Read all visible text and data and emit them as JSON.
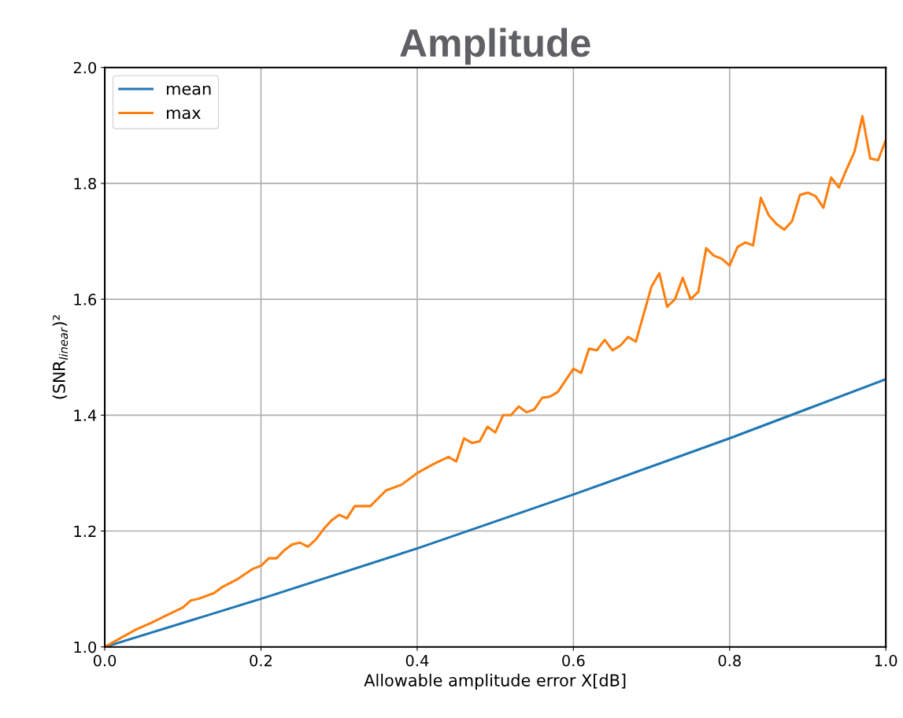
{
  "chart_data": {
    "type": "line",
    "title": "Amplitude",
    "xlabel": "Allowable amplitude error X[dB]",
    "ylabel": "(SNR$_{linear}$)²",
    "xlim": [
      0,
      1.0
    ],
    "ylim": [
      1.0,
      2.0
    ],
    "xticks": [
      {
        "value": 0,
        "label": "0.0"
      },
      0.2,
      0.4,
      0.6,
      0.8,
      {
        "value": 1,
        "label": "1.0"
      }
    ],
    "yticks": [
      {
        "value": 1,
        "label": "1.0"
      },
      1.2,
      1.4,
      1.6,
      1.8,
      {
        "value": 2,
        "label": "2.0"
      }
    ],
    "grid": true,
    "legend": "top left",
    "marker": "none",
    "line_style": "solid",
    "series": [
      {
        "name": "mean",
        "color": "#1f77b4",
        "x": [
          0,
          0.2,
          0.4,
          0.6,
          0.8,
          1.0
        ],
        "values": [
          1.0,
          1.083,
          1.17,
          1.263,
          1.36,
          1.462
        ]
      },
      {
        "name": "max",
        "color": "#ff7f0e",
        "x": [
          0,
          0.02,
          0.04,
          0.06,
          0.08,
          0.1,
          0.11,
          0.12,
          0.14,
          0.15,
          0.17,
          0.19,
          0.2,
          0.21,
          0.22,
          0.23,
          0.24,
          0.25,
          0.26,
          0.27,
          0.28,
          0.29,
          0.3,
          0.31,
          0.32,
          0.34,
          0.36,
          0.38,
          0.4,
          0.42,
          0.44,
          0.45,
          0.46,
          0.47,
          0.48,
          0.49,
          0.5,
          0.51,
          0.52,
          0.53,
          0.54,
          0.55,
          0.56,
          0.57,
          0.58,
          0.6,
          0.61,
          0.62,
          0.63,
          0.64,
          0.65,
          0.66,
          0.67,
          0.68,
          0.7,
          0.71,
          0.72,
          0.73,
          0.74,
          0.75,
          0.76,
          0.77,
          0.78,
          0.79,
          0.8,
          0.81,
          0.82,
          0.83,
          0.84,
          0.85,
          0.86,
          0.87,
          0.88,
          0.89,
          0.9,
          0.91,
          0.92,
          0.93,
          0.94,
          0.95,
          0.96,
          0.97,
          0.98,
          0.99,
          1.0
        ],
        "values": [
          1.0,
          1.015,
          1.03,
          1.042,
          1.055,
          1.068,
          1.08,
          1.083,
          1.093,
          1.103,
          1.117,
          1.135,
          1.14,
          1.153,
          1.153,
          1.167,
          1.177,
          1.18,
          1.173,
          1.185,
          1.203,
          1.218,
          1.228,
          1.222,
          1.243,
          1.243,
          1.27,
          1.28,
          1.3,
          1.315,
          1.328,
          1.32,
          1.36,
          1.352,
          1.355,
          1.38,
          1.37,
          1.4,
          1.4,
          1.415,
          1.405,
          1.41,
          1.43,
          1.432,
          1.44,
          1.48,
          1.473,
          1.515,
          1.512,
          1.53,
          1.512,
          1.52,
          1.535,
          1.527,
          1.622,
          1.645,
          1.587,
          1.6,
          1.637,
          1.6,
          1.613,
          1.688,
          1.675,
          1.67,
          1.658,
          1.69,
          1.698,
          1.693,
          1.775,
          1.745,
          1.73,
          1.72,
          1.735,
          1.78,
          1.784,
          1.778,
          1.758,
          1.81,
          1.793,
          1.825,
          1.855,
          1.916,
          1.843,
          1.84,
          1.875
        ]
      }
    ]
  }
}
